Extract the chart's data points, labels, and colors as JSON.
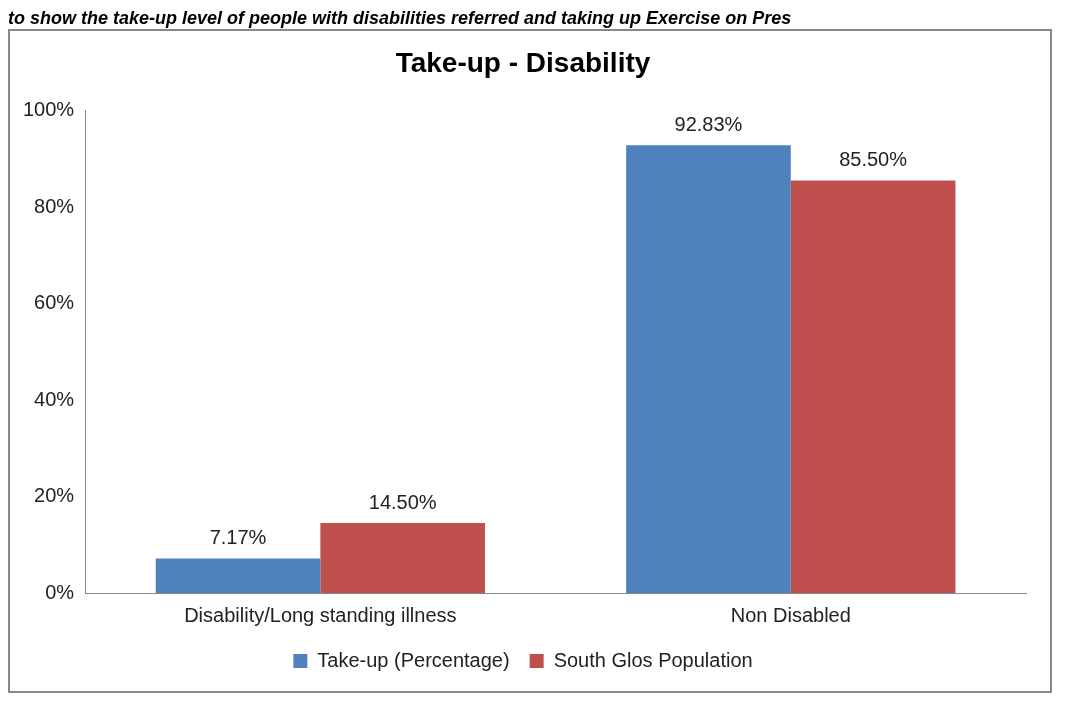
{
  "chart_data": {
    "type": "bar",
    "title": "Take-up - Disability",
    "annotations": [
      "to show the take-up level of people with disabilities referred and taking up Exercise on Pres"
    ],
    "categories": [
      "Disability/Long standing illness",
      "Non Disabled"
    ],
    "series": [
      {
        "name": "Take-up (Percentage)",
        "color": "#4f81bd",
        "values": [
          7.17,
          92.83
        ],
        "value_labels": [
          "7.17%",
          "92.83%"
        ]
      },
      {
        "name": "South Glos Population",
        "color": "#c0504d",
        "values": [
          14.5,
          85.5
        ],
        "value_labels": [
          "14.50%",
          "85.50%"
        ]
      }
    ],
    "ylim": [
      0,
      100
    ],
    "yticks": [
      {
        "value": 0,
        "label": "0%"
      },
      {
        "value": 20,
        "label": "20%"
      },
      {
        "value": 40,
        "label": "40%"
      },
      {
        "value": 60,
        "label": "60%"
      },
      {
        "value": 80,
        "label": "80%"
      },
      {
        "value": 100,
        "label": "100%"
      }
    ],
    "grid": false,
    "legend": "bottom"
  }
}
